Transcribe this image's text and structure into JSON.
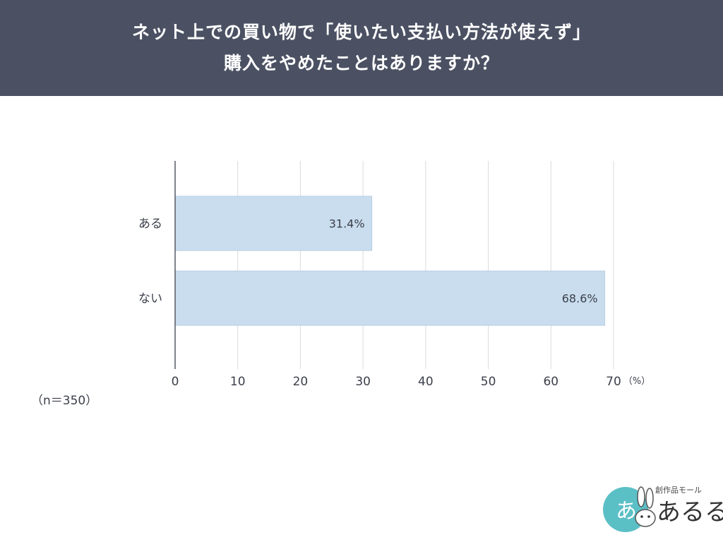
{
  "header": {
    "title_line1": "ネット上での買い物で「使いたい支払い方法が使えず」",
    "title_line2": "購入をやめたことはありますか？"
  },
  "sample_size": "（n＝350）",
  "colors": {
    "header_bg": "#4b5163",
    "bar_fill": "#c9ddee",
    "bar_border": "#b7cfe4",
    "grid": "#d8dbe0",
    "axis": "#555a63",
    "logo_circle": "#5bbfc6"
  },
  "chart_data": {
    "type": "bar",
    "orientation": "horizontal",
    "categories": [
      "ある",
      "ない"
    ],
    "values": [
      31.4,
      68.6
    ],
    "value_labels": [
      "31.4%",
      "68.6%"
    ],
    "xlim": [
      0,
      70
    ],
    "xticks": [
      0,
      10,
      20,
      30,
      40,
      50,
      60,
      70
    ],
    "xunit": "（%）",
    "grid": true
  },
  "logo": {
    "brand_line": "創作品モール",
    "brand_name": "あるる",
    "badge_text": "あ"
  }
}
